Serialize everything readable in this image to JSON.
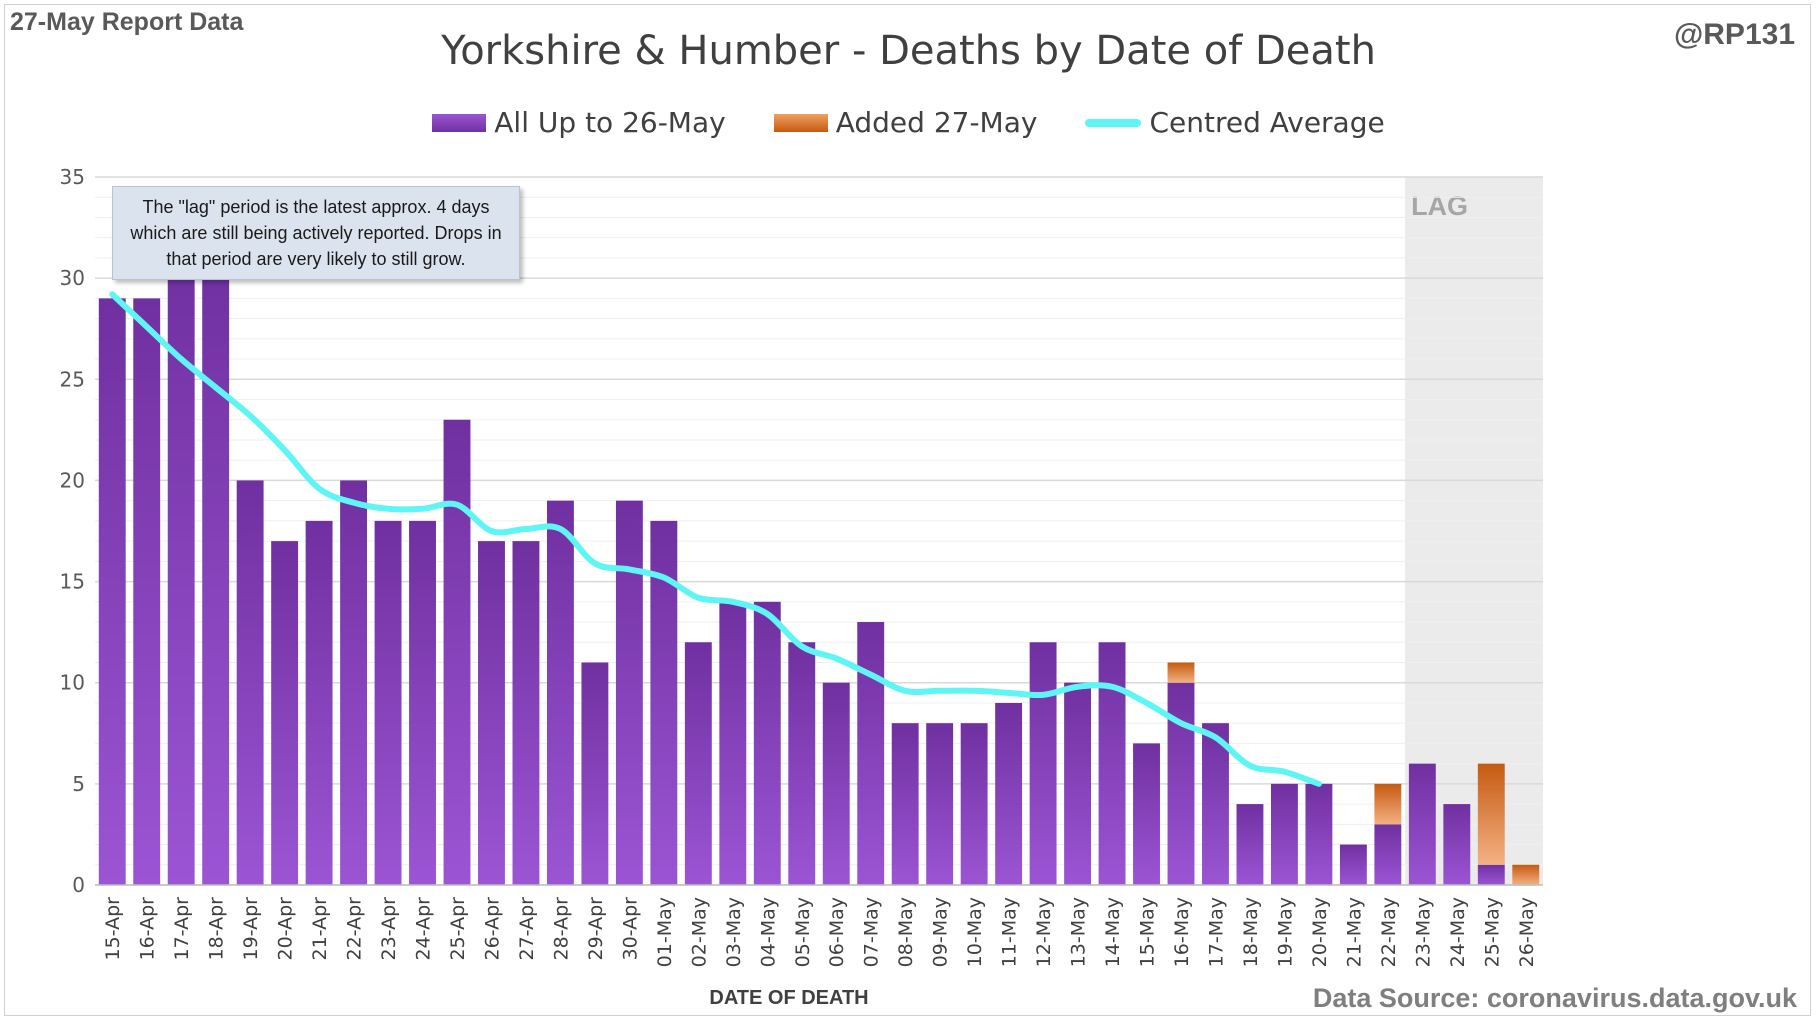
{
  "header": {
    "report_label": "27-May Report Data",
    "handle": "@RP131",
    "title": "Yorkshire & Humber - Deaths by Date of Death"
  },
  "legend": {
    "series1": "All Up to 26-May",
    "series2": "Added 27-May",
    "series3": "Centred Average"
  },
  "annotation": "The \"lag\" period is the latest approx. 4 days which are still being actively reported.  Drops in that period are very likely to still grow.",
  "lag_label": "LAG",
  "footer": {
    "source": "Data Source: coronavirus.data.gov.uk"
  },
  "colors": {
    "series1": "#7030a0",
    "series2": "#d86f20",
    "average": "#5ff5f5",
    "lag_band": "#ebebeb"
  },
  "chart_data": {
    "type": "bar",
    "stacked": true,
    "xlabel": "DATE OF DEATH",
    "ylabel": "",
    "ylim": [
      0,
      35
    ],
    "yticks": [
      0,
      5,
      10,
      15,
      20,
      25,
      30,
      35
    ],
    "grid": true,
    "legend_position": "top",
    "categories": [
      "15-Apr",
      "16-Apr",
      "17-Apr",
      "18-Apr",
      "19-Apr",
      "20-Apr",
      "21-Apr",
      "22-Apr",
      "23-Apr",
      "24-Apr",
      "25-Apr",
      "26-Apr",
      "27-Apr",
      "28-Apr",
      "29-Apr",
      "30-Apr",
      "01-May",
      "02-May",
      "03-May",
      "04-May",
      "05-May",
      "06-May",
      "07-May",
      "08-May",
      "09-May",
      "10-May",
      "11-May",
      "12-May",
      "13-May",
      "14-May",
      "15-May",
      "16-May",
      "17-May",
      "18-May",
      "19-May",
      "20-May",
      "21-May",
      "22-May",
      "23-May",
      "24-May",
      "25-May",
      "26-May"
    ],
    "series": [
      {
        "name": "All Up to 26-May",
        "values": [
          29,
          29,
          31,
          31,
          20,
          17,
          18,
          20,
          18,
          18,
          23,
          17,
          17,
          19,
          11,
          19,
          18,
          12,
          14,
          14,
          12,
          10,
          13,
          8,
          8,
          8,
          9,
          12,
          10,
          12,
          7,
          10,
          8,
          4,
          5,
          5,
          2,
          3,
          6,
          4,
          1,
          0
        ]
      },
      {
        "name": "Added 27-May",
        "values": [
          0,
          0,
          0,
          0,
          0,
          0,
          0,
          0,
          0,
          0,
          0,
          0,
          0,
          0,
          0,
          0,
          0,
          0,
          0,
          0,
          0,
          0,
          0,
          0,
          0,
          0,
          0,
          0,
          0,
          0,
          0,
          1,
          0,
          0,
          0,
          0,
          0,
          2,
          0,
          0,
          5,
          1
        ]
      },
      {
        "name": "Centred Average",
        "type": "line",
        "values": [
          29.2,
          27.6,
          26.0,
          24.6,
          23.2,
          21.5,
          19.6,
          18.9,
          18.6,
          18.6,
          18.8,
          17.5,
          17.6,
          17.6,
          15.9,
          15.6,
          15.2,
          14.2,
          14.0,
          13.4,
          11.8,
          11.2,
          10.4,
          9.6,
          9.6,
          9.6,
          9.5,
          9.4,
          9.8,
          9.8,
          9.0,
          8.0,
          7.3,
          5.9,
          5.6,
          5.0,
          null,
          null,
          null,
          null,
          null,
          null
        ]
      }
    ],
    "lag_categories": [
      "23-May",
      "24-May",
      "25-May",
      "26-May"
    ]
  }
}
